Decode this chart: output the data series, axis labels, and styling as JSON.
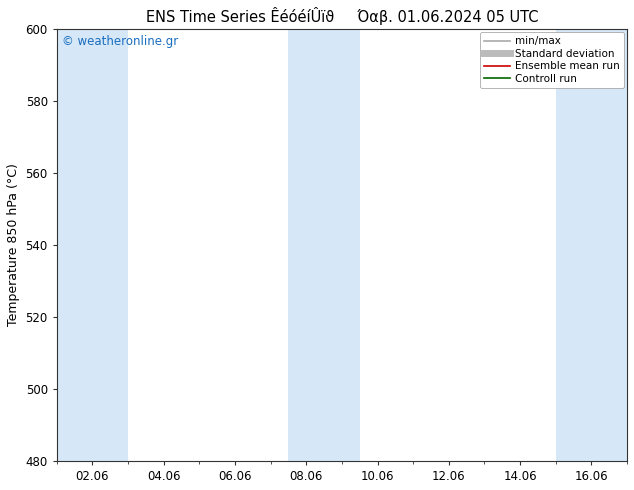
{
  "title": "ENS Time Series ÊéóéíÛïϑ     Όαβ. 01.06.2024 05 UTC",
  "ylabel": "Temperature 850 hPa (°C)",
  "ylim": [
    480,
    600
  ],
  "yticks": [
    480,
    500,
    520,
    540,
    560,
    580,
    600
  ],
  "xtick_labels": [
    "02.06",
    "04.06",
    "06.06",
    "08.06",
    "10.06",
    "12.06",
    "14.06",
    "16.06"
  ],
  "xtick_positions": [
    2,
    4,
    6,
    8,
    10,
    12,
    14,
    16
  ],
  "xlim": [
    1,
    17
  ],
  "bg_color": "#ffffff",
  "plot_bg_color": "#ffffff",
  "shaded_bands": [
    {
      "x_start": 1.0,
      "x_end": 3.0,
      "color": "#d6e8f7"
    },
    {
      "x_start": 7.5,
      "x_end": 9.5,
      "color": "#d6e8f7"
    },
    {
      "x_start": 15.0,
      "x_end": 17.0,
      "color": "#d6e8f7"
    }
  ],
  "watermark": "© weatheronline.gr",
  "watermark_color": "#1a6ec0",
  "legend_items": [
    {
      "label": "min/max",
      "color": "#aaaaaa",
      "linewidth": 1.2,
      "linestyle": "-"
    },
    {
      "label": "Standard deviation",
      "color": "#bbbbbb",
      "linewidth": 5,
      "linestyle": "-"
    },
    {
      "label": "Ensemble mean run",
      "color": "#cc0000",
      "linewidth": 1.2,
      "linestyle": "-"
    },
    {
      "label": "Controll run",
      "color": "#006600",
      "linewidth": 1.2,
      "linestyle": "-"
    }
  ],
  "title_fontsize": 10.5,
  "ylabel_fontsize": 9,
  "tick_fontsize": 8.5,
  "legend_fontsize": 7.5
}
